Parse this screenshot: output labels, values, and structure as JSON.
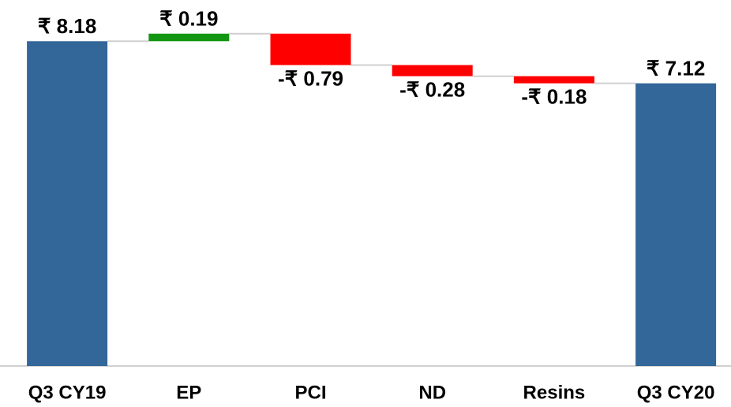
{
  "chart_data": {
    "type": "waterfall",
    "categories": [
      "Q3 CY19",
      "EP",
      "PCI",
      "ND",
      "Resins",
      "Q3 CY20"
    ],
    "values": [
      8.18,
      0.19,
      -0.79,
      -0.28,
      -0.18,
      7.12
    ],
    "value_labels": [
      "₹ 8.18",
      "₹ 0.19",
      "-₹ 0.79",
      "-₹ 0.28",
      "-₹ 0.18",
      "₹ 7.12"
    ],
    "totals": [
      true,
      false,
      false,
      false,
      false,
      true
    ],
    "colors": {
      "total": "#336699",
      "increase": "#129612",
      "decrease": "#ff0000"
    },
    "ylim": [
      0,
      9
    ]
  }
}
